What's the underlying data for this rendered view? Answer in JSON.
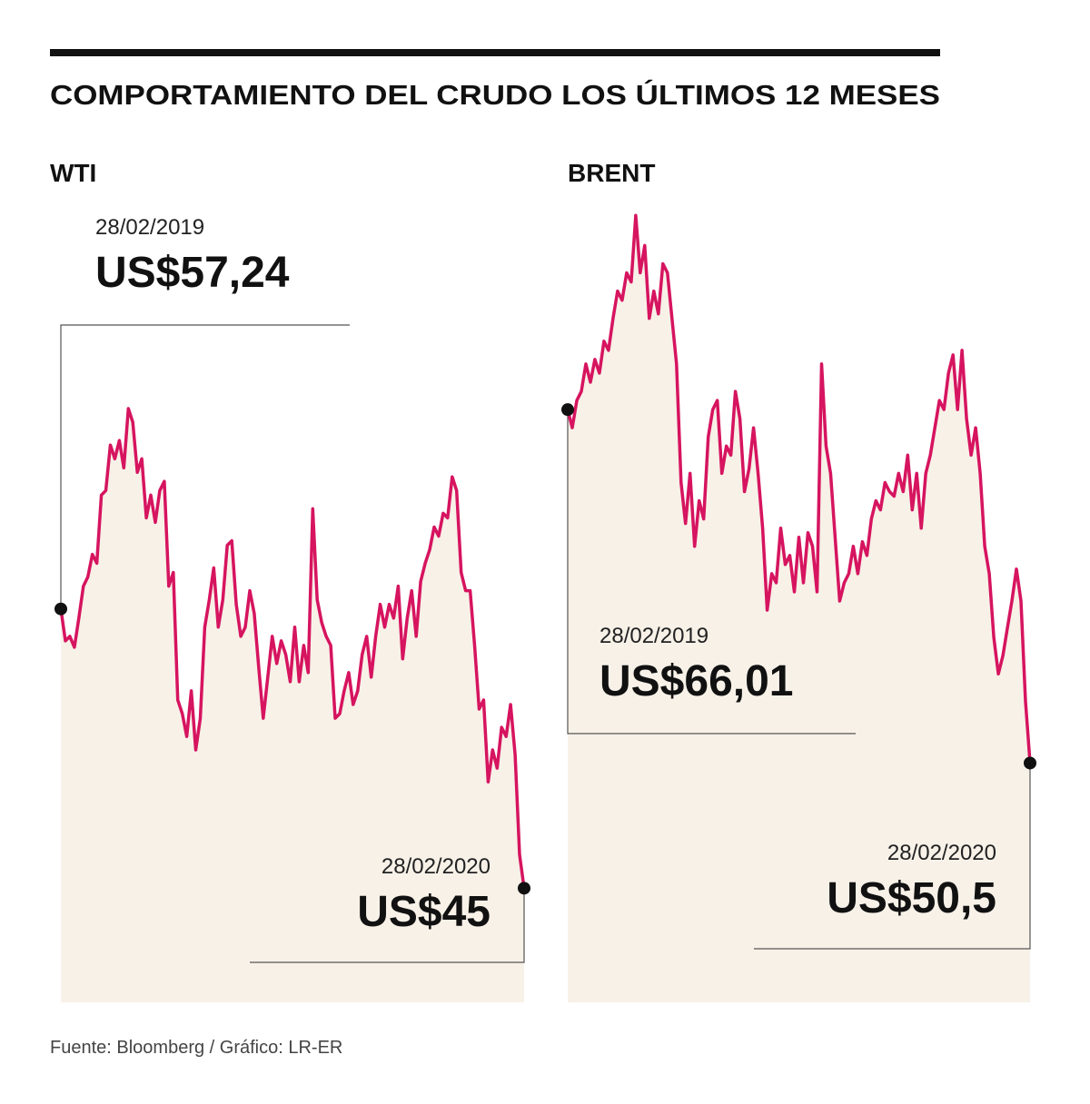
{
  "title": "COMPORTAMIENTO DEL CRUDO LOS ÚLTIMOS 12 MESES",
  "source": "Fuente: Bloomberg / Gráfico: LR-ER",
  "chart_data": [
    {
      "type": "line",
      "title": "WTI",
      "color": "#d6145f",
      "fill": "#f7f1e8",
      "ylim": [
        40,
        70
      ],
      "values": [
        57.24,
        55.84,
        56.04,
        55.56,
        56.84,
        58.24,
        58.64,
        59.63,
        59.24,
        62.23,
        62.43,
        64.42,
        63.82,
        64.62,
        63.42,
        66.02,
        65.42,
        63.23,
        63.82,
        61.23,
        62.23,
        61.03,
        62.43,
        62.83,
        58.24,
        58.84,
        53.25,
        52.65,
        51.65,
        53.65,
        51.06,
        52.45,
        56.44,
        57.64,
        59.04,
        56.44,
        57.64,
        60.03,
        60.23,
        57.44,
        56.04,
        56.44,
        58.04,
        57.04,
        54.65,
        52.45,
        54.25,
        56.04,
        54.85,
        55.84,
        55.24,
        54.05,
        56.44,
        54.05,
        55.64,
        54.45,
        61.63,
        57.64,
        56.64,
        56.04,
        55.64,
        52.45,
        52.65,
        53.65,
        54.45,
        53.05,
        53.65,
        55.24,
        56.04,
        54.25,
        56.04,
        57.44,
        56.44,
        57.44,
        56.84,
        58.24,
        55.05,
        56.84,
        58.04,
        56.04,
        58.44,
        59.24,
        59.83,
        60.83,
        60.43,
        61.43,
        61.23,
        63.03,
        62.43,
        58.84,
        58.04,
        58.04,
        55.64,
        52.85,
        53.25,
        49.66,
        51.06,
        50.26,
        52.05,
        51.65,
        53.05,
        50.86,
        46.47,
        45
      ],
      "annotations": [
        {
          "date": "28/02/2019",
          "label": "US$57,24",
          "value": 57.24
        },
        {
          "date": "28/02/2020",
          "label": "US$45",
          "value": 45
        }
      ]
    },
    {
      "type": "line",
      "title": "BRENT",
      "color": "#d6145f",
      "fill": "#f7f1e8",
      "ylim": [
        40,
        80
      ],
      "values": [
        66.01,
        65.21,
        66.41,
        66.81,
        68.01,
        67.21,
        68.21,
        67.61,
        69.01,
        68.61,
        70.01,
        71.21,
        70.81,
        72.01,
        71.61,
        74.53,
        72.01,
        73.21,
        70.01,
        71.21,
        70.21,
        72.41,
        72.01,
        70.01,
        68.01,
        62.81,
        61.01,
        63.21,
        60.01,
        62.01,
        61.21,
        64.81,
        66.01,
        66.41,
        63.21,
        64.41,
        64.01,
        66.81,
        65.61,
        62.41,
        63.41,
        65.21,
        63.21,
        60.81,
        57.21,
        58.81,
        58.41,
        60.81,
        59.21,
        59.61,
        58.01,
        60.41,
        58.41,
        60.61,
        60.01,
        58.01,
        68.01,
        64.41,
        63.21,
        60.41,
        57.61,
        58.41,
        58.81,
        60.01,
        58.81,
        60.21,
        59.61,
        61.21,
        62.01,
        61.61,
        62.81,
        62.41,
        62.21,
        63.21,
        62.41,
        64.01,
        61.61,
        63.21,
        60.81,
        63.21,
        64.01,
        65.21,
        66.41,
        66.01,
        67.61,
        68.41,
        66.01,
        68.61,
        65.61,
        64.01,
        65.21,
        63.21,
        60.01,
        58.81,
        56.01,
        54.41,
        55.21,
        56.41,
        57.61,
        59.01,
        57.61,
        53.21,
        50.5
      ],
      "annotations": [
        {
          "date": "28/02/2019",
          "label": "US$66,01",
          "value": 66.01
        },
        {
          "date": "28/02/2020",
          "label": "US$50,5",
          "value": 50.5
        }
      ]
    }
  ]
}
